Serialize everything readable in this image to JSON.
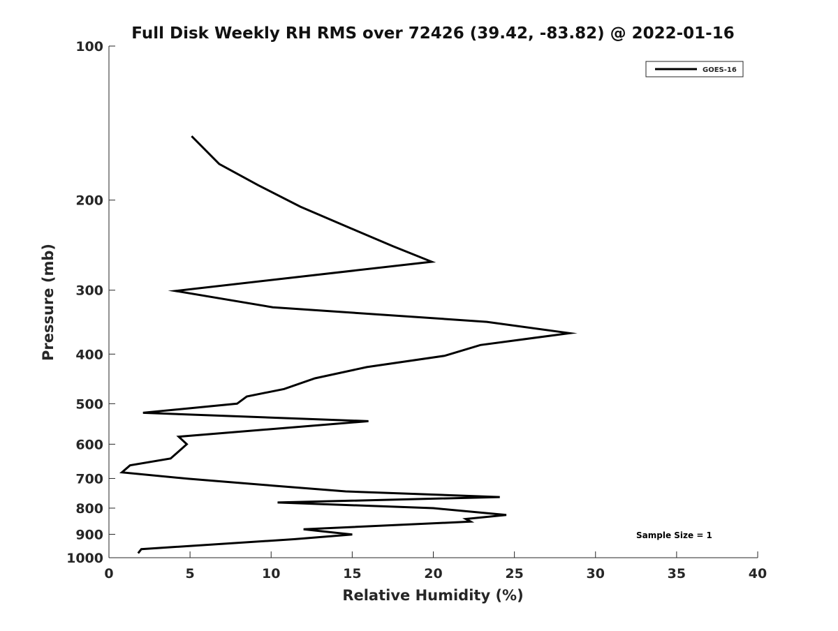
{
  "chart_data": {
    "type": "line",
    "title": "Full Disk Weekly RH RMS over 72426 (39.42, -83.82) @ 2022-01-16",
    "xlabel": "Relative Humidity (%)",
    "ylabel": "Pressure (mb)",
    "xlim": [
      0,
      40
    ],
    "ylim": [
      100,
      1000
    ],
    "yscale": "log",
    "y_reversed": true,
    "grid": false,
    "legend_position": "top-right",
    "x_ticks": [
      "0",
      "5",
      "10",
      "15",
      "20",
      "25",
      "30",
      "35",
      "40"
    ],
    "y_ticks": [
      "100",
      "200",
      "300",
      "400",
      "500",
      "600",
      "700",
      "800",
      "900",
      "1000"
    ],
    "series": [
      {
        "name": "GOES-16",
        "color": "#000000",
        "x": [
          5.1,
          6.8,
          9.2,
          11.8,
          14.9,
          17.5,
          19.9,
          4.1,
          10.1,
          23.3,
          28.4,
          22.9,
          20.7,
          15.9,
          12.7,
          10.8,
          8.5,
          7.9,
          2.1,
          16.0,
          4.3,
          4.8,
          3.8,
          1.3,
          0.8,
          4.9,
          10.1,
          14.6,
          24.1,
          10.4,
          20.0,
          24.5,
          22.0,
          22.3,
          12.0,
          15.0,
          11.4,
          2.0,
          1.8
        ],
        "y": [
          150,
          170,
          187,
          206,
          227,
          246,
          264,
          301,
          324,
          346,
          364,
          384,
          403,
          424,
          446,
          468,
          484,
          500,
          521,
          541,
          580,
          600,
          640,
          660,
          681,
          701,
          723,
          742,
          761,
          780,
          800,
          825,
          840,
          850,
          880,
          901,
          920,
          962,
          980
        ]
      }
    ],
    "annotations": [
      "Sample Size = 1"
    ]
  }
}
